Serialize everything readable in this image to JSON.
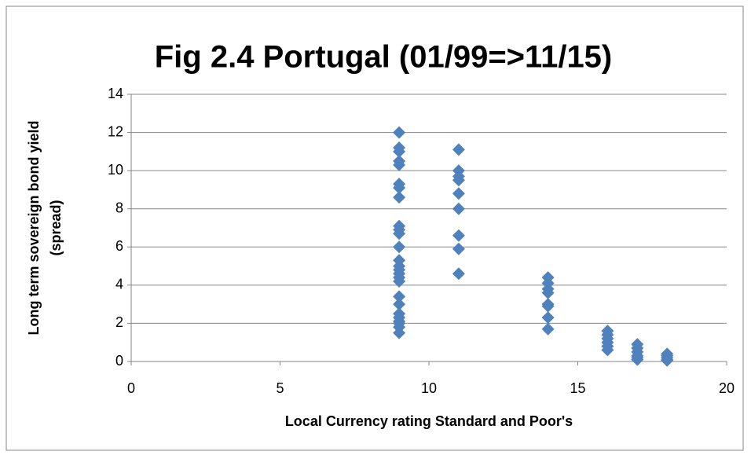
{
  "chart_data": {
    "type": "scatter",
    "title": "Fig 2.4 Portugal (01/99=>11/15)",
    "x_label": "Local Currency rating Standard and Poor's",
    "y_label": [
      "Long term sovereign bond yield",
      "(spread)"
    ],
    "series": [
      {
        "color": "#4f81bd",
        "x": [
          9,
          9,
          9,
          9,
          9,
          9,
          9,
          9,
          9,
          9,
          9,
          9,
          9,
          9,
          9,
          9,
          9,
          9,
          9,
          9,
          9,
          9,
          9,
          9,
          9,
          9,
          11,
          11,
          11,
          11,
          11,
          11,
          11,
          11,
          11,
          14,
          14,
          14,
          14,
          14,
          14,
          14,
          14,
          16,
          16,
          16,
          16,
          16,
          16,
          17,
          17,
          17,
          17,
          17,
          17,
          18,
          18,
          18,
          18,
          18
        ],
        "values": [
          12.0,
          11.2,
          11.0,
          10.5,
          10.3,
          9.3,
          9.1,
          8.6,
          7.1,
          6.9,
          6.7,
          6.0,
          5.3,
          5.0,
          4.8,
          4.6,
          4.4,
          4.2,
          3.4,
          3.0,
          2.5,
          2.3,
          2.1,
          2.0,
          1.8,
          1.5,
          11.1,
          10.0,
          9.7,
          9.5,
          8.8,
          8.0,
          6.6,
          5.9,
          4.6,
          4.4,
          4.1,
          3.8,
          3.6,
          3.0,
          2.9,
          2.3,
          1.7,
          1.6,
          1.4,
          1.2,
          1.0,
          0.8,
          0.6,
          0.9,
          0.7,
          0.5,
          0.3,
          0.2,
          0.1,
          0.4,
          0.3,
          0.2,
          0.1,
          0.05
        ]
      }
    ],
    "xlim": [
      0,
      20
    ],
    "xticks": [
      0,
      5,
      10,
      15,
      20
    ],
    "ylim": [
      0,
      14
    ],
    "yticks": [
      0,
      2,
      4,
      6,
      8,
      10,
      12,
      14
    ],
    "grid": true
  }
}
